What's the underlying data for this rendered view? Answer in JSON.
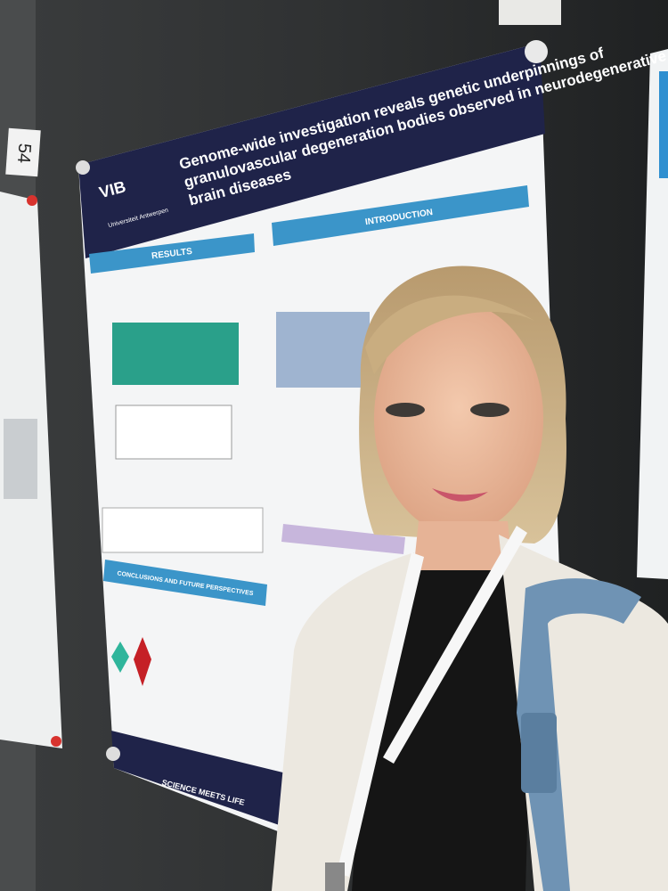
{
  "board_number": "54",
  "poster": {
    "title_lines": [
      "Genome-wide investigation reveals genetic underpinnings of",
      "granulovascular degeneration bodies observed in neurodegenerative",
      "brain diseases"
    ],
    "logo": "VIB",
    "university": "Universiteit Antwerpen",
    "sections": [
      "INTRODUCTION",
      "RESULTS",
      "CONCLUSIONS AND FUTURE PERSPECTIVES"
    ],
    "footer": "SCIENCE MEETS LIFE"
  }
}
